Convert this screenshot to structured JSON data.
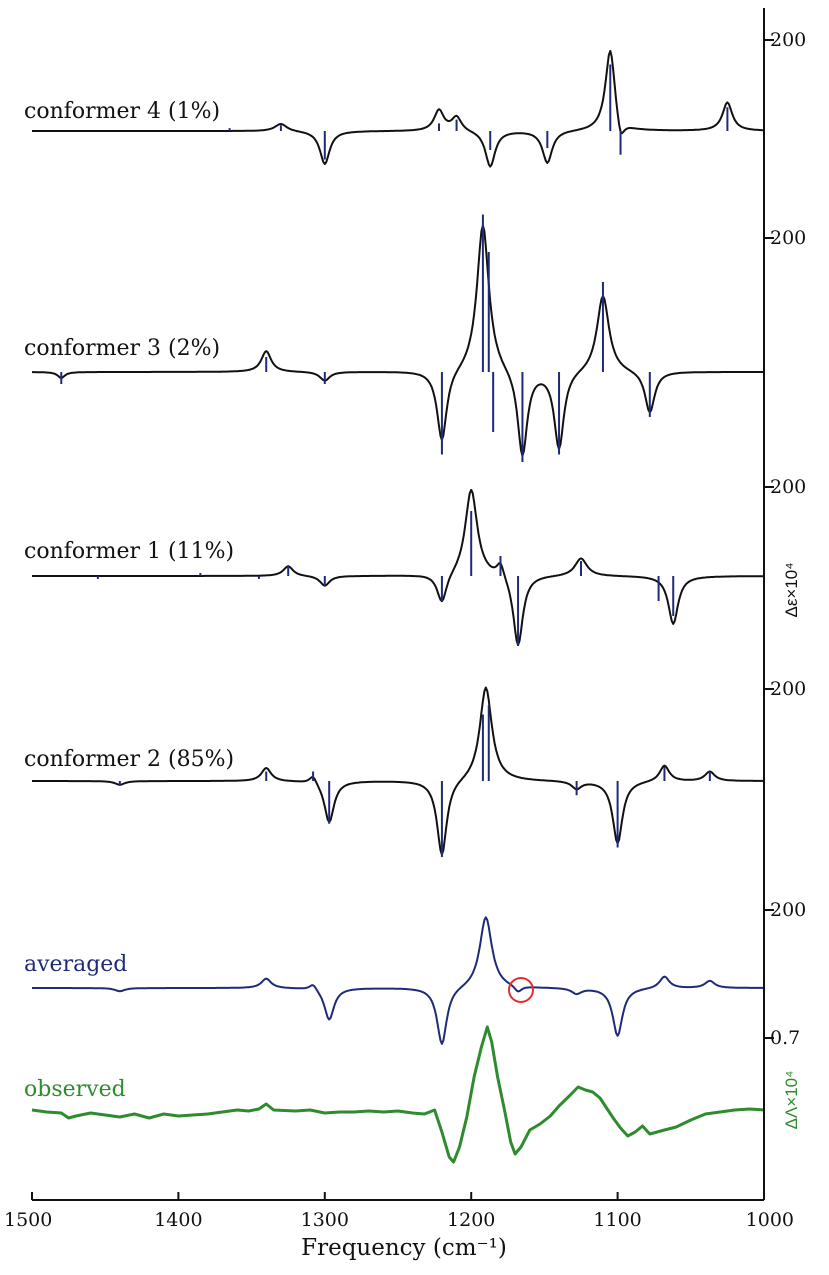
{
  "chart_data": {
    "type": "line",
    "xlabel": "Frequency (cm⁻¹)",
    "x_ticks": [
      1500,
      1400,
      1300,
      1200,
      1100,
      1000
    ],
    "xlim": [
      1500,
      1000
    ],
    "right_axis_labels": {
      "calc": "Δε×10⁴",
      "observed": "ΔΛ×10⁴"
    },
    "colors": {
      "black": "#111111",
      "blue": "#1f2a78",
      "green": "#2e8b2e",
      "red": "#e03030"
    },
    "panels": [
      {
        "name": "conformer 4 (1%)",
        "color": "#111111",
        "scale_label": "200",
        "sticks": [
          [
            1365,
            3
          ],
          [
            1330,
            6
          ],
          [
            1300,
            -30
          ],
          [
            1222,
            8
          ],
          [
            1210,
            12
          ],
          [
            1187,
            -20
          ],
          [
            1148,
            -18
          ],
          [
            1105,
            70
          ],
          [
            1098,
            -25
          ],
          [
            1025,
            25
          ]
        ],
        "peaks": [
          [
            1330,
            8,
            5
          ],
          [
            1300,
            -35,
            4
          ],
          [
            1222,
            22,
            4
          ],
          [
            1210,
            15,
            4
          ],
          [
            1187,
            -38,
            4
          ],
          [
            1148,
            -34,
            4
          ],
          [
            1105,
            88,
            4
          ],
          [
            1098,
            -22,
            3
          ],
          [
            1025,
            30,
            4
          ]
        ]
      },
      {
        "name": "conformer 3 (2%)",
        "color": "#111111",
        "scale_label": "200",
        "sticks": [
          [
            1480,
            -8
          ],
          [
            1340,
            10
          ],
          [
            1300,
            -8
          ],
          [
            1220,
            -55
          ],
          [
            1192,
            105
          ],
          [
            1188,
            80
          ],
          [
            1185,
            -40
          ],
          [
            1165,
            -60
          ],
          [
            1140,
            -55
          ],
          [
            1110,
            60
          ],
          [
            1078,
            -30
          ]
        ],
        "peaks": [
          [
            1480,
            -4,
            3
          ],
          [
            1340,
            14,
            4
          ],
          [
            1300,
            -6,
            4
          ],
          [
            1220,
            -48,
            4
          ],
          [
            1192,
            100,
            5
          ],
          [
            1165,
            -58,
            4
          ],
          [
            1140,
            -52,
            4
          ],
          [
            1110,
            52,
            5
          ],
          [
            1078,
            -28,
            4
          ]
        ]
      },
      {
        "name": "conformer 1 (11%)",
        "color": "#111111",
        "scale_label": "200",
        "sticks": [
          [
            1455,
            -3
          ],
          [
            1385,
            3
          ],
          [
            1345,
            -3
          ],
          [
            1325,
            10
          ],
          [
            1300,
            -10
          ],
          [
            1220,
            -25
          ],
          [
            1200,
            65
          ],
          [
            1180,
            20
          ],
          [
            1168,
            -70
          ],
          [
            1125,
            15
          ],
          [
            1072,
            -25
          ],
          [
            1062,
            -40
          ]
        ],
        "peaks": [
          [
            1325,
            10,
            4
          ],
          [
            1300,
            -10,
            4
          ],
          [
            1220,
            -30,
            4
          ],
          [
            1200,
            88,
            5
          ],
          [
            1180,
            15,
            3
          ],
          [
            1168,
            -72,
            4
          ],
          [
            1125,
            18,
            5
          ],
          [
            1062,
            -48,
            4
          ]
        ]
      },
      {
        "name": "conformer 2 (85%)",
        "color": "#111111",
        "scale_label": "200",
        "sticks": [
          [
            1440,
            -5
          ],
          [
            1340,
            10
          ],
          [
            1308,
            10
          ],
          [
            1297,
            -45
          ],
          [
            1220,
            -80
          ],
          [
            1192,
            70
          ],
          [
            1188,
            80
          ],
          [
            1128,
            -15
          ],
          [
            1100,
            -70
          ],
          [
            1068,
            15
          ],
          [
            1037,
            10
          ]
        ],
        "peaks": [
          [
            1440,
            -4,
            4
          ],
          [
            1340,
            14,
            4
          ],
          [
            1308,
            9,
            3
          ],
          [
            1297,
            -44,
            4
          ],
          [
            1220,
            -80,
            4
          ],
          [
            1190,
            100,
            5
          ],
          [
            1128,
            -8,
            4
          ],
          [
            1100,
            -66,
            4
          ],
          [
            1068,
            17,
            4
          ],
          [
            1037,
            10,
            4
          ]
        ]
      },
      {
        "name": "averaged",
        "color": "#1f2a78",
        "scale_label": "200",
        "sticks": [],
        "peaks": [
          [
            1440,
            -4,
            4
          ],
          [
            1340,
            12,
            4
          ],
          [
            1308,
            8,
            3
          ],
          [
            1297,
            -40,
            4
          ],
          [
            1220,
            -72,
            4
          ],
          [
            1190,
            90,
            5
          ],
          [
            1168,
            -8,
            3
          ],
          [
            1128,
            -7,
            4
          ],
          [
            1100,
            -60,
            4
          ],
          [
            1068,
            15,
            4
          ],
          [
            1037,
            9,
            4
          ]
        ],
        "circle_at": 1166
      },
      {
        "name": "observed",
        "color": "#2e8b2e",
        "scale_label": "0.7",
        "sticks": [],
        "points": [
          [
            1500,
            2
          ],
          [
            1490,
            0
          ],
          [
            1480,
            -1
          ],
          [
            1475,
            -6
          ],
          [
            1470,
            -4
          ],
          [
            1460,
            -1
          ],
          [
            1450,
            -3
          ],
          [
            1440,
            -5
          ],
          [
            1430,
            -2
          ],
          [
            1420,
            -6
          ],
          [
            1410,
            -2
          ],
          [
            1400,
            -4
          ],
          [
            1390,
            -3
          ],
          [
            1380,
            -2
          ],
          [
            1370,
            0
          ],
          [
            1360,
            2
          ],
          [
            1352,
            1
          ],
          [
            1345,
            3
          ],
          [
            1340,
            8
          ],
          [
            1335,
            2
          ],
          [
            1320,
            1
          ],
          [
            1310,
            2
          ],
          [
            1300,
            -1
          ],
          [
            1290,
            0
          ],
          [
            1280,
            0
          ],
          [
            1270,
            1
          ],
          [
            1260,
            0
          ],
          [
            1250,
            1
          ],
          [
            1240,
            -1
          ],
          [
            1232,
            -2
          ],
          [
            1225,
            2
          ],
          [
            1220,
            -20
          ],
          [
            1215,
            -45
          ],
          [
            1212,
            -50
          ],
          [
            1208,
            -35
          ],
          [
            1203,
            -5
          ],
          [
            1198,
            35
          ],
          [
            1193,
            65
          ],
          [
            1189,
            85
          ],
          [
            1186,
            70
          ],
          [
            1182,
            35
          ],
          [
            1177,
            0
          ],
          [
            1173,
            -30
          ],
          [
            1170,
            -42
          ],
          [
            1166,
            -35
          ],
          [
            1160,
            -18
          ],
          [
            1153,
            -12
          ],
          [
            1146,
            -4
          ],
          [
            1140,
            6
          ],
          [
            1133,
            16
          ],
          [
            1127,
            25
          ],
          [
            1122,
            22
          ],
          [
            1117,
            20
          ],
          [
            1112,
            14
          ],
          [
            1108,
            5
          ],
          [
            1103,
            -6
          ],
          [
            1098,
            -16
          ],
          [
            1093,
            -24
          ],
          [
            1088,
            -20
          ],
          [
            1083,
            -14
          ],
          [
            1078,
            -22
          ],
          [
            1073,
            -20
          ],
          [
            1068,
            -18
          ],
          [
            1060,
            -15
          ],
          [
            1050,
            -8
          ],
          [
            1040,
            -2
          ],
          [
            1030,
            0
          ],
          [
            1020,
            2
          ],
          [
            1010,
            3
          ],
          [
            1000,
            2
          ]
        ]
      }
    ]
  }
}
